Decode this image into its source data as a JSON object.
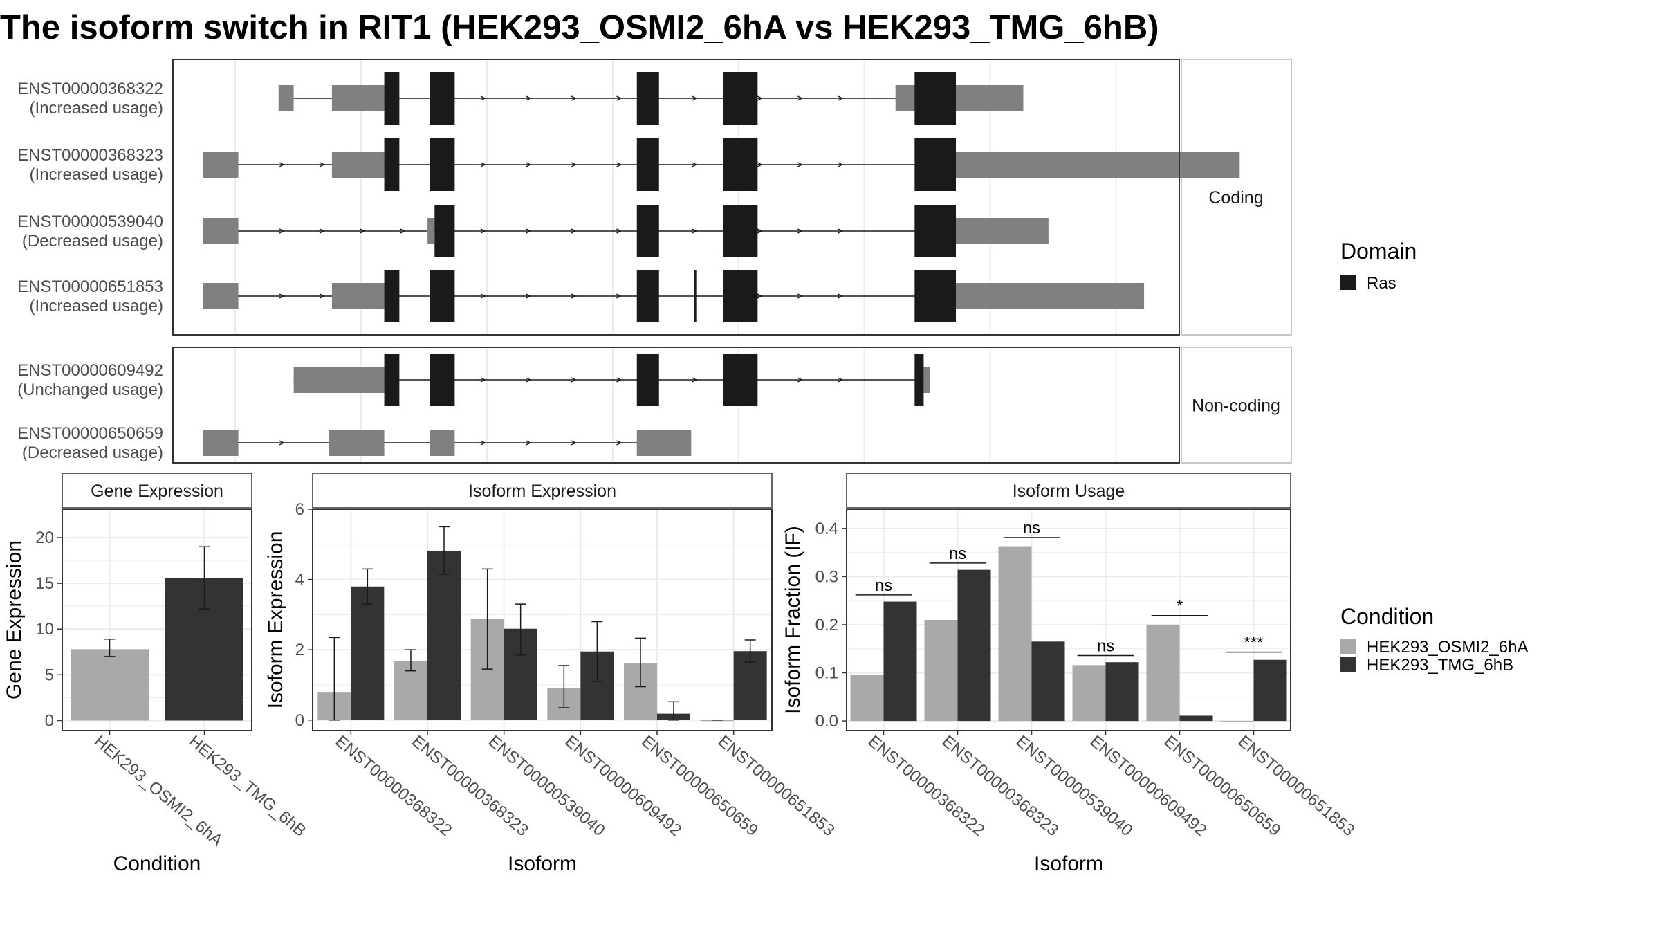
{
  "title": "The isoform switch in RIT1 (HEK293_OSMI2_6hA vs HEK293_TMG_6hB)",
  "colors": {
    "utr": "#808080",
    "cds": "#1a1a1a",
    "cond1": "#a9a9a9",
    "cond2": "#333333",
    "panel_border": "#333333",
    "strip_border": "#b3b3b3",
    "grid": "#ebebeb"
  },
  "domain_legend": {
    "title": "Domain",
    "items": [
      {
        "label": "Ras",
        "color": "#1a1a1a"
      }
    ]
  },
  "condition_legend": {
    "title": "Condition",
    "items": [
      {
        "label": "HEK293_OSMI2_6hA",
        "color": "#a9a9a9"
      },
      {
        "label": "HEK293_TMG_6hB",
        "color": "#333333"
      }
    ]
  },
  "chart_data": [
    {
      "type": "gene-structure",
      "name": "isoform structures",
      "xlim": [
        0,
        1000
      ],
      "groups": [
        {
          "label": "Coding",
          "transcripts": [
            {
              "id": "ENST00000368322",
              "usage": "(Increased usage)",
              "start": 105,
              "end": 845,
              "utr": [
                [
                  105,
                  120
                ],
                [
                  158,
                  170
                ],
                [
                  170,
                  210
                ],
                [
                  718,
                  845
                ]
              ],
              "cds": [
                [
                  210,
                  225
                ],
                [
                  255,
                  280
                ],
                [
                  461,
                  483
                ],
                [
                  547,
                  581
                ],
                [
                  737,
                  778
                ]
              ],
              "arrows": [
                310,
                355,
                400,
                445,
                520,
                585,
                625,
                665
              ]
            },
            {
              "id": "ENST00000368323",
              "usage": "(Increased usage)",
              "start": 30,
              "end": 1060,
              "utr": [
                [
                  30,
                  65
                ],
                [
                  158,
                  170
                ],
                [
                  170,
                  210
                ],
                [
                  778,
                  1060
                ]
              ],
              "cds": [
                [
                  210,
                  225
                ],
                [
                  255,
                  280
                ],
                [
                  461,
                  483
                ],
                [
                  547,
                  581
                ],
                [
                  737,
                  778
                ]
              ],
              "arrows": [
                110,
                150,
                310,
                355,
                400,
                445,
                520,
                585,
                625,
                665
              ]
            },
            {
              "id": "ENST00000539040",
              "usage": "(Decreased usage)",
              "start": 30,
              "end": 870,
              "utr": [
                [
                  30,
                  65
                ],
                [
                  253,
                  260
                ],
                [
                  778,
                  870
                ]
              ],
              "cds": [
                [
                  260,
                  280
                ],
                [
                  461,
                  483
                ],
                [
                  547,
                  581
                ],
                [
                  737,
                  778
                ]
              ],
              "arrows": [
                110,
                150,
                190,
                230,
                310,
                355,
                400,
                445,
                520,
                585,
                625,
                665
              ]
            },
            {
              "id": "ENST00000651853",
              "usage": "(Increased usage)",
              "start": 30,
              "end": 965,
              "utr": [
                [
                  30,
                  65
                ],
                [
                  158,
                  170
                ],
                [
                  170,
                  210
                ],
                [
                  778,
                  965
                ]
              ],
              "cds": [
                [
                  210,
                  225
                ],
                [
                  255,
                  280
                ],
                [
                  461,
                  483
                ],
                [
                  518,
                  519
                ],
                [
                  547,
                  581
                ],
                [
                  737,
                  778
                ]
              ],
              "arrows": [
                110,
                150,
                310,
                355,
                400,
                445,
                585,
                625,
                665
              ]
            }
          ]
        },
        {
          "label": "Non-coding",
          "transcripts": [
            {
              "id": "ENST00000609492",
              "usage": "(Unchanged usage)",
              "start": 120,
              "end": 752,
              "utr": [
                [
                  120,
                  210
                ],
                [
                  746,
                  752
                ]
              ],
              "cds": [
                [
                  210,
                  225
                ],
                [
                  255,
                  280
                ],
                [
                  461,
                  483
                ],
                [
                  547,
                  581
                ],
                [
                  737,
                  746
                ]
              ],
              "arrows": [
                310,
                355,
                400,
                445,
                520,
                625,
                665
              ]
            },
            {
              "id": "ENST00000650659",
              "usage": "(Decreased usage)",
              "start": 30,
              "end": 515,
              "utr": [
                [
                  30,
                  65
                ],
                [
                  155,
                  210
                ],
                [
                  255,
                  280
                ],
                [
                  461,
                  515
                ]
              ],
              "cds": [],
              "arrows": [
                110,
                310,
                355,
                400,
                445
              ]
            }
          ]
        }
      ]
    },
    {
      "type": "bar",
      "title": "Gene Expression",
      "xlabel": "Condition",
      "ylabel": "Gene Expression",
      "ylim": [
        -1.1,
        23.1
      ],
      "yticks": [
        0,
        5,
        10,
        15,
        20
      ],
      "categories": [
        "HEK293_OSMI2_6hA",
        "HEK293_TMG_6hB"
      ],
      "values": [
        7.8,
        15.6
      ],
      "error": [
        [
          7.0,
          8.9
        ],
        [
          12.2,
          19.0
        ]
      ]
    },
    {
      "type": "bar",
      "title": "Isoform Expression",
      "xlabel": "Isoform",
      "ylabel": "Isoform Expression",
      "ylim": [
        -0.3,
        6.0
      ],
      "yticks": [
        0,
        2,
        4,
        6
      ],
      "categories": [
        "ENST00000368322",
        "ENST00000368323",
        "ENST00000539040",
        "ENST00000609492",
        "ENST00000650659",
        "ENST00000651853"
      ],
      "series": [
        {
          "name": "HEK293_OSMI2_6hA",
          "values": [
            0.8,
            1.68,
            2.88,
            0.92,
            1.62,
            0.0
          ],
          "error": [
            [
              0.0,
              2.35
            ],
            [
              1.4,
              2.0
            ],
            [
              1.45,
              4.3
            ],
            [
              0.35,
              1.55
            ],
            [
              0.95,
              2.33
            ],
            [
              0.0,
              0.0
            ]
          ]
        },
        {
          "name": "HEK293_TMG_6hB",
          "values": [
            3.8,
            4.82,
            2.6,
            1.95,
            0.18,
            1.96
          ],
          "error": [
            [
              3.3,
              4.3
            ],
            [
              4.15,
              5.5
            ],
            [
              1.85,
              3.3
            ],
            [
              1.1,
              2.8
            ],
            [
              0.0,
              0.52
            ],
            [
              1.65,
              2.28
            ]
          ]
        }
      ]
    },
    {
      "type": "bar",
      "title": "Isoform Usage",
      "xlabel": "Isoform",
      "ylabel": "Isoform Fraction (IF)",
      "ylim": [
        -0.02,
        0.44
      ],
      "yticks": [
        0.0,
        0.1,
        0.2,
        0.3,
        0.4
      ],
      "ytick_labels": [
        "0.0",
        "0.1",
        "0.2",
        "0.3",
        "0.4"
      ],
      "categories": [
        "ENST00000368322",
        "ENST00000368323",
        "ENST00000539040",
        "ENST00000609492",
        "ENST00000650659",
        "ENST00000651853"
      ],
      "series": [
        {
          "name": "HEK293_OSMI2_6hA",
          "values": [
            0.096,
            0.21,
            0.363,
            0.116,
            0.199,
            0.0
          ]
        },
        {
          "name": "HEK293_TMG_6hB",
          "values": [
            0.248,
            0.314,
            0.165,
            0.122,
            0.011,
            0.127
          ]
        }
      ],
      "significance": [
        {
          "label": "ns",
          "y": 0.262
        },
        {
          "label": "ns",
          "y": 0.328
        },
        {
          "label": "ns",
          "y": 0.381
        },
        {
          "label": "ns",
          "y": 0.136
        },
        {
          "label": "*",
          "y": 0.219
        },
        {
          "label": "***",
          "y": 0.143
        }
      ]
    }
  ]
}
